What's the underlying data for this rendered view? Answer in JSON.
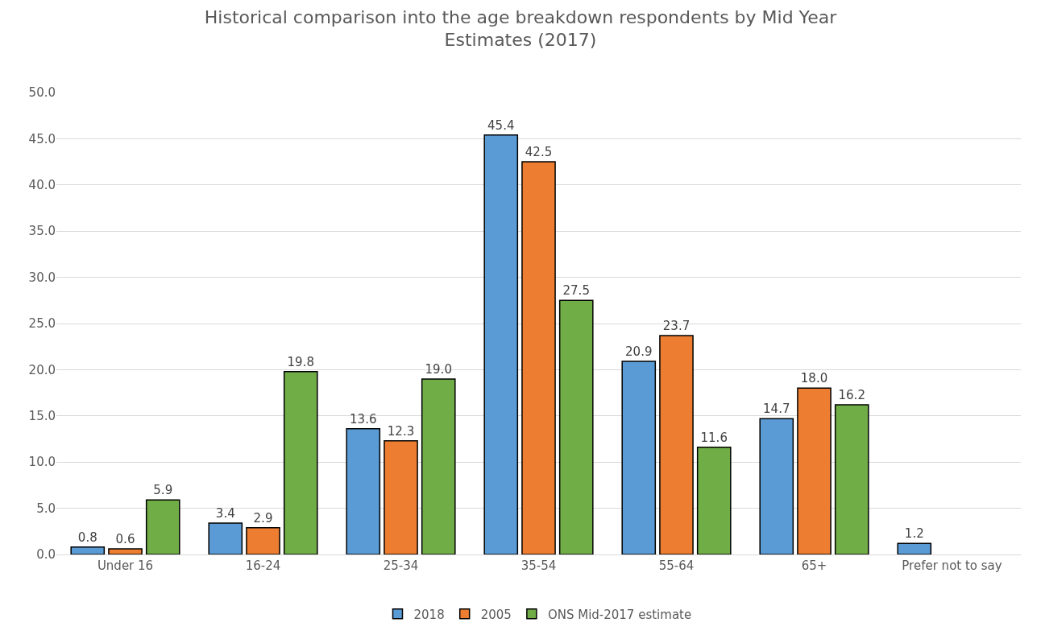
{
  "chart_data": {
    "type": "bar",
    "title": "Historical comparison into the age breakdown respondents by Mid Year Estimates (2017)",
    "categories": [
      "Under 16",
      "16-24",
      "25-34",
      "35-54",
      "55-64",
      "65+",
      "Prefer not to say"
    ],
    "series": [
      {
        "name": "2018",
        "color": "#5b9bd5",
        "values": [
          0.8,
          3.4,
          13.6,
          45.4,
          20.9,
          14.7,
          1.2
        ],
        "value_labels": [
          "0.8",
          "3.4",
          "13.6",
          "45.4",
          "20.9",
          "14.7",
          "1.2"
        ]
      },
      {
        "name": "2005",
        "color": "#ed7d31",
        "values": [
          0.6,
          2.9,
          12.3,
          42.5,
          23.7,
          18.0,
          null
        ],
        "value_labels": [
          "0.6",
          "2.9",
          "12.3",
          "42.5",
          "23.7",
          "18.0",
          null
        ]
      },
      {
        "name": "ONS Mid-2017 estimate",
        "color": "#70ad47",
        "values": [
          5.9,
          19.8,
          19.0,
          27.5,
          11.6,
          16.2,
          null
        ],
        "value_labels": [
          "5.9",
          "19.8",
          "19.0",
          "27.5",
          "11.6",
          "16.2",
          null
        ]
      }
    ],
    "ylim": [
      0,
      50
    ],
    "yticks": [
      {
        "value": 0,
        "label": "0.0"
      },
      {
        "value": 5,
        "label": "5.0"
      },
      {
        "value": 10,
        "label": "10.0"
      },
      {
        "value": 15,
        "label": "15.0"
      },
      {
        "value": 20,
        "label": "20.0"
      },
      {
        "value": 25,
        "label": "25.0"
      },
      {
        "value": 30,
        "label": "30.0"
      },
      {
        "value": 35,
        "label": "35.0"
      },
      {
        "value": 40,
        "label": "40.0"
      },
      {
        "value": 45,
        "label": "45.0"
      },
      {
        "value": 50,
        "label": "50.0"
      }
    ],
    "grid": "y",
    "legend": "bottom"
  }
}
